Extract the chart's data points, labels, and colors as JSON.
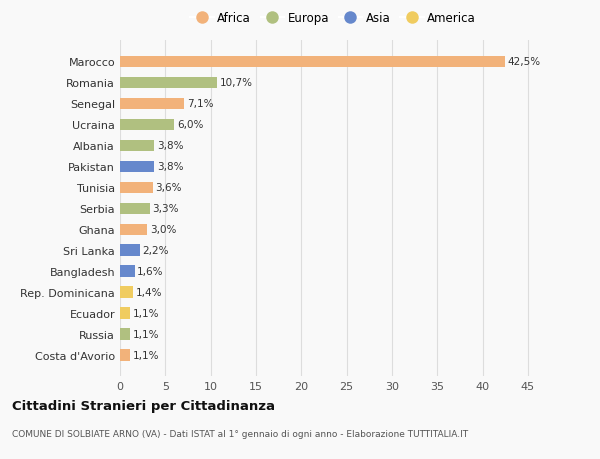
{
  "countries": [
    "Marocco",
    "Romania",
    "Senegal",
    "Ucraina",
    "Albania",
    "Pakistan",
    "Tunisia",
    "Serbia",
    "Ghana",
    "Sri Lanka",
    "Bangladesh",
    "Rep. Dominicana",
    "Ecuador",
    "Russia",
    "Costa d'Avorio"
  ],
  "values": [
    42.5,
    10.7,
    7.1,
    6.0,
    3.8,
    3.8,
    3.6,
    3.3,
    3.0,
    2.2,
    1.6,
    1.4,
    1.1,
    1.1,
    1.1
  ],
  "labels": [
    "42,5%",
    "10,7%",
    "7,1%",
    "6,0%",
    "3,8%",
    "3,8%",
    "3,6%",
    "3,3%",
    "3,0%",
    "2,2%",
    "1,6%",
    "1,4%",
    "1,1%",
    "1,1%",
    "1,1%"
  ],
  "continents": [
    "Africa",
    "Europa",
    "Africa",
    "Europa",
    "Europa",
    "Asia",
    "Africa",
    "Europa",
    "Africa",
    "Asia",
    "Asia",
    "America",
    "America",
    "Europa",
    "Africa"
  ],
  "colors": {
    "Africa": "#F2B27A",
    "Europa": "#B0C080",
    "Asia": "#6688CC",
    "America": "#F0CC60"
  },
  "legend_order": [
    "Africa",
    "Europa",
    "Asia",
    "America"
  ],
  "xlim": [
    0,
    47
  ],
  "xticks": [
    0,
    5,
    10,
    15,
    20,
    25,
    30,
    35,
    40,
    45
  ],
  "title": "Cittadini Stranieri per Cittadinanza",
  "subtitle": "COMUNE DI SOLBIATE ARNO (VA) - Dati ISTAT al 1° gennaio di ogni anno - Elaborazione TUTTITALIA.IT",
  "bg_color": "#f9f9f9",
  "grid_color": "#dddddd"
}
